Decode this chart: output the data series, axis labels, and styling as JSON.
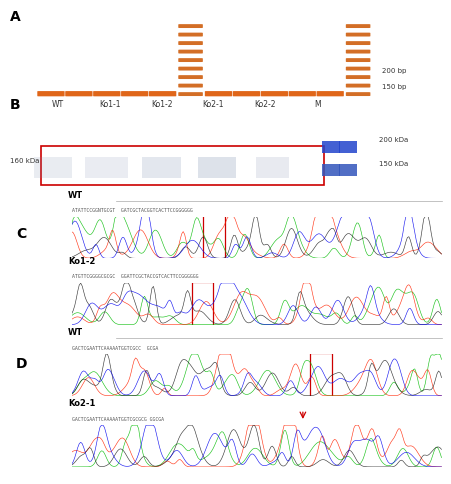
{
  "panel_A": {
    "gel_bg": "#1a0000",
    "ladder_color": "#cc5500",
    "label": "A",
    "bp_labels": [
      "200 bp",
      "150 bp"
    ]
  },
  "panel_B": {
    "label": "B",
    "bg_color": "#ccd8e4",
    "box_color": "#cc0000",
    "lane_labels": [
      "WT",
      "Ko1-1",
      "Ko1-2",
      "Ko2-1",
      "Ko2-2",
      "M"
    ],
    "left_label": "160 kDa",
    "right_labels": [
      "200 kDa",
      "150 kDa"
    ]
  },
  "panel_C": {
    "label": "C",
    "sample_labels": [
      "WT",
      "Ko1-2"
    ],
    "box_color": "#cc0000"
  },
  "panel_D": {
    "label": "D",
    "sample_labels": [
      "WT",
      "Ko2-1"
    ],
    "box_color": "#cc0000",
    "arrow_color": "#cc0000"
  },
  "figure_bg": "#ffffff",
  "label_fontsize": 10,
  "seq_fontsize": 3.5,
  "sample_name_fontsize": 6,
  "annot_fontsize": 5,
  "text_color": "#333333"
}
